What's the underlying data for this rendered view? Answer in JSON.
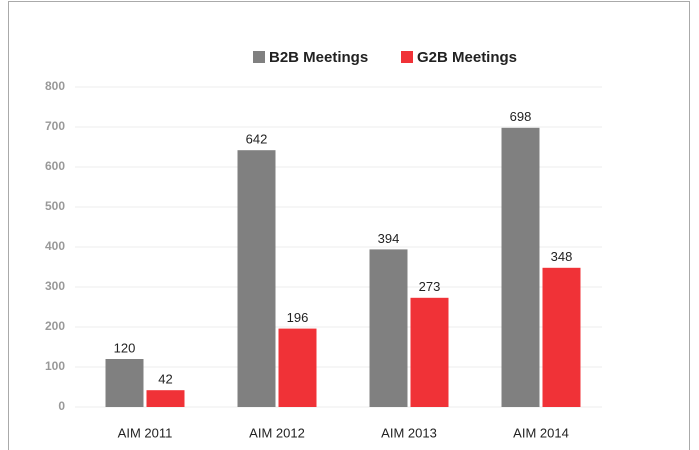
{
  "chart_data": {
    "type": "bar",
    "categories": [
      "AIM 2011",
      "AIM 2012",
      "AIM 2013",
      "AIM 2014"
    ],
    "series": [
      {
        "name": "B2B Meetings",
        "color": "#808080",
        "values": [
          120,
          642,
          394,
          698
        ]
      },
      {
        "name": "G2B Meetings",
        "color": "#f03237",
        "values": [
          42,
          196,
          273,
          348
        ]
      }
    ],
    "ylim": [
      0,
      800
    ],
    "yticks": [
      0,
      100,
      200,
      300,
      400,
      500,
      600,
      700,
      800
    ],
    "grid": true,
    "legend": "top"
  }
}
